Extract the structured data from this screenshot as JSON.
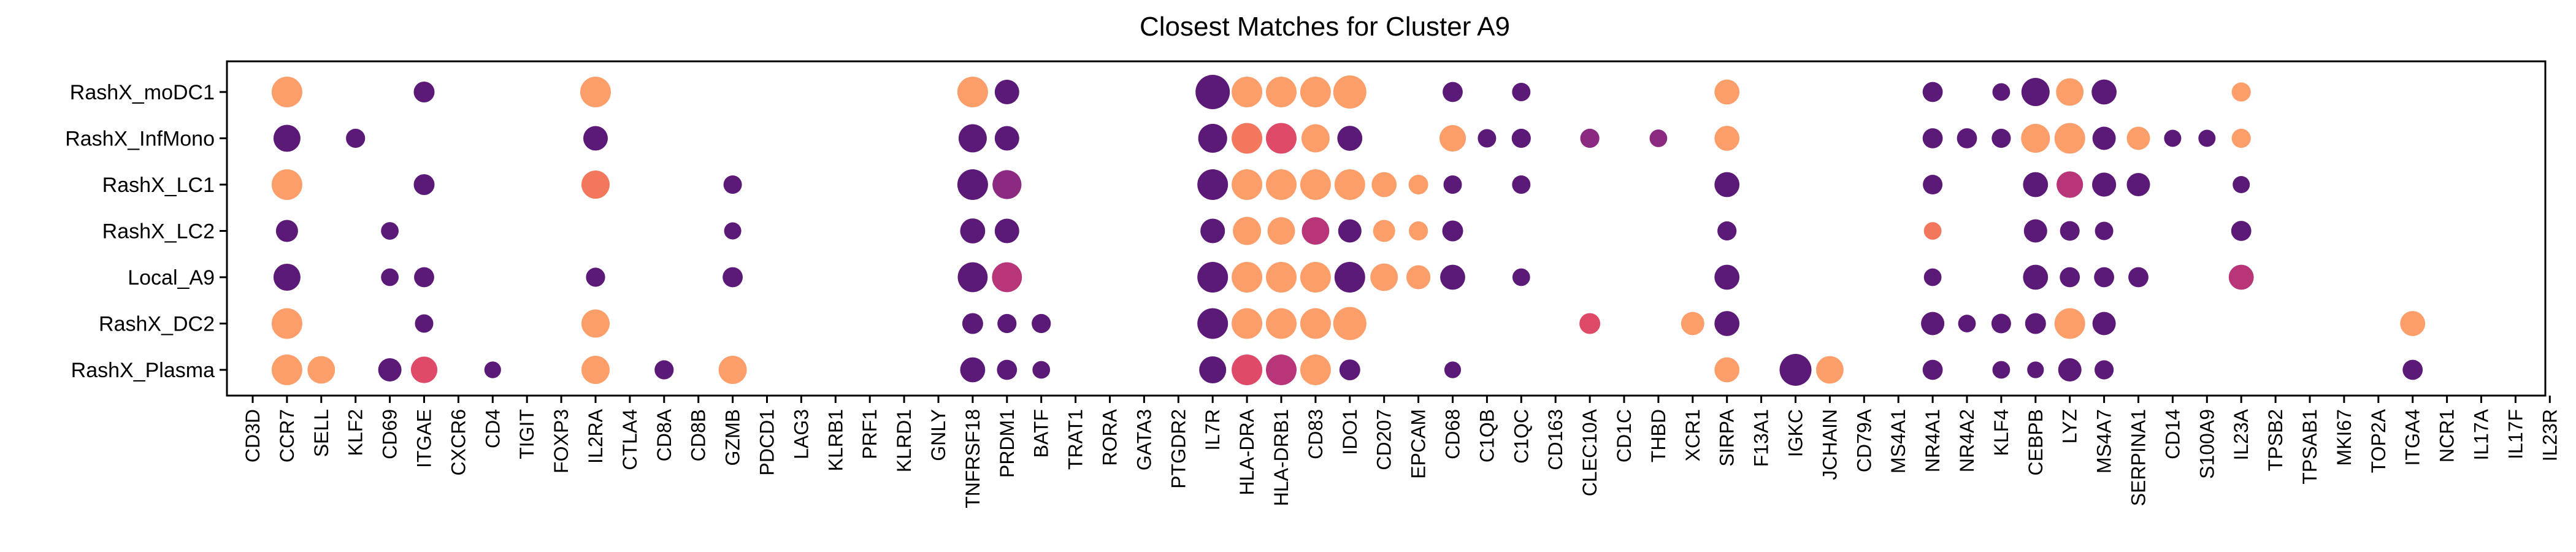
{
  "chart_data": {
    "type": "scatter",
    "title": "Closest Matches for Cluster A9",
    "xlabel": "",
    "ylabel": "",
    "grid": false,
    "legend": "none",
    "categories": [
      "CD3D",
      "CCR7",
      "SELL",
      "KLF2",
      "CD69",
      "ITGAE",
      "CXCR6",
      "CD4",
      "TIGIT",
      "FOXP3",
      "IL2RA",
      "CTLA4",
      "CD8A",
      "CD8B",
      "GZMB",
      "PDCD1",
      "LAG3",
      "KLRB1",
      "PRF1",
      "KLRD1",
      "GNLY",
      "TNFRSF18",
      "PRDM1",
      "BATF",
      "TRAT1",
      "RORA",
      "GATA3",
      "PTGDR2",
      "IL7R",
      "HLA-DRA",
      "HLA-DRB1",
      "CD83",
      "IDO1",
      "CD207",
      "EPCAM",
      "CD68",
      "C1QB",
      "C1QC",
      "CD163",
      "CLEC10A",
      "CD1C",
      "THBD",
      "XCR1",
      "SIRPA",
      "F13A1",
      "IGKC",
      "JCHAIN",
      "CD79A",
      "MS4A1",
      "NR4A1",
      "NR4A2",
      "KLF4",
      "CEBPB",
      "LYZ",
      "MS4A7",
      "SERPINA1",
      "CD14",
      "S100A9",
      "IL23A",
      "TPSB2",
      "TPSAB1",
      "MKI67",
      "TOP2A",
      "ITGA4",
      "NCR1",
      "IL17A",
      "IL17F",
      "IL23R"
    ],
    "rows": [
      "RashX_moDC1",
      "RashX_InfMono",
      "RashX_LC1",
      "RashX_LC2",
      "Local_A9",
      "RashX_DC2",
      "RashX_Plasma"
    ],
    "color_scale": [
      "#5c1a78",
      "#8c2a81",
      "#b8357a",
      "#de4a68",
      "#f3775c",
      "#fb9e6a"
    ],
    "points": [
      {
        "row": "RashX_moDC1",
        "gene": "CCR7",
        "size": 0.85,
        "color": 1.0
      },
      {
        "row": "RashX_moDC1",
        "gene": "ITGAE",
        "size": 0.45,
        "color": 0.0
      },
      {
        "row": "RashX_moDC1",
        "gene": "IL2RA",
        "size": 0.85,
        "color": 1.0
      },
      {
        "row": "RashX_moDC1",
        "gene": "TNFRSF18",
        "size": 0.85,
        "color": 1.0
      },
      {
        "row": "RashX_moDC1",
        "gene": "PRDM1",
        "size": 0.6,
        "color": 0.0
      },
      {
        "row": "RashX_moDC1",
        "gene": "IL7R",
        "size": 1.0,
        "color": 0.0
      },
      {
        "row": "RashX_moDC1",
        "gene": "HLA-DRA",
        "size": 0.85,
        "color": 1.0
      },
      {
        "row": "RashX_moDC1",
        "gene": "HLA-DRB1",
        "size": 0.85,
        "color": 1.0
      },
      {
        "row": "RashX_moDC1",
        "gene": "CD83",
        "size": 0.85,
        "color": 1.0
      },
      {
        "row": "RashX_moDC1",
        "gene": "IDO1",
        "size": 0.95,
        "color": 1.0
      },
      {
        "row": "RashX_moDC1",
        "gene": "CD68",
        "size": 0.42,
        "color": 0.0
      },
      {
        "row": "RashX_moDC1",
        "gene": "C1QC",
        "size": 0.35,
        "color": 0.0
      },
      {
        "row": "RashX_moDC1",
        "gene": "SIRPA",
        "size": 0.62,
        "color": 1.0
      },
      {
        "row": "RashX_moDC1",
        "gene": "NR4A1",
        "size": 0.42,
        "color": 0.0
      },
      {
        "row": "RashX_moDC1",
        "gene": "KLF4",
        "size": 0.32,
        "color": 0.0
      },
      {
        "row": "RashX_moDC1",
        "gene": "CEBPB",
        "size": 0.75,
        "color": 0.0
      },
      {
        "row": "RashX_moDC1",
        "gene": "LYZ",
        "size": 0.72,
        "color": 1.0
      },
      {
        "row": "RashX_moDC1",
        "gene": "MS4A7",
        "size": 0.62,
        "color": 0.0
      },
      {
        "row": "RashX_moDC1",
        "gene": "IL23A",
        "size": 0.38,
        "color": 1.0
      },
      {
        "row": "RashX_InfMono",
        "gene": "CCR7",
        "size": 0.7,
        "color": 0.0
      },
      {
        "row": "RashX_InfMono",
        "gene": "KLF2",
        "size": 0.38,
        "color": 0.0
      },
      {
        "row": "RashX_InfMono",
        "gene": "IL2RA",
        "size": 0.6,
        "color": 0.0
      },
      {
        "row": "RashX_InfMono",
        "gene": "TNFRSF18",
        "size": 0.75,
        "color": 0.0
      },
      {
        "row": "RashX_InfMono",
        "gene": "PRDM1",
        "size": 0.6,
        "color": 0.0
      },
      {
        "row": "RashX_InfMono",
        "gene": "IL7R",
        "size": 0.78,
        "color": 0.0
      },
      {
        "row": "RashX_InfMono",
        "gene": "HLA-DRA",
        "size": 0.85,
        "color": 0.8
      },
      {
        "row": "RashX_InfMono",
        "gene": "HLA-DRB1",
        "size": 0.85,
        "color": 0.6
      },
      {
        "row": "RashX_InfMono",
        "gene": "CD83",
        "size": 0.75,
        "color": 1.0
      },
      {
        "row": "RashX_InfMono",
        "gene": "IDO1",
        "size": 0.62,
        "color": 0.0
      },
      {
        "row": "RashX_InfMono",
        "gene": "CD68",
        "size": 0.68,
        "color": 1.0
      },
      {
        "row": "RashX_InfMono",
        "gene": "C1QB",
        "size": 0.35,
        "color": 0.0
      },
      {
        "row": "RashX_InfMono",
        "gene": "C1QC",
        "size": 0.38,
        "color": 0.0
      },
      {
        "row": "RashX_InfMono",
        "gene": "CLEC10A",
        "size": 0.38,
        "color": 0.2
      },
      {
        "row": "RashX_InfMono",
        "gene": "THBD",
        "size": 0.32,
        "color": 0.2
      },
      {
        "row": "RashX_InfMono",
        "gene": "SIRPA",
        "size": 0.62,
        "color": 1.0
      },
      {
        "row": "RashX_InfMono",
        "gene": "NR4A1",
        "size": 0.42,
        "color": 0.0
      },
      {
        "row": "RashX_InfMono",
        "gene": "NR4A2",
        "size": 0.42,
        "color": 0.0
      },
      {
        "row": "RashX_InfMono",
        "gene": "KLF4",
        "size": 0.38,
        "color": 0.0
      },
      {
        "row": "RashX_InfMono",
        "gene": "CEBPB",
        "size": 0.78,
        "color": 1.0
      },
      {
        "row": "RashX_InfMono",
        "gene": "LYZ",
        "size": 0.85,
        "color": 1.0
      },
      {
        "row": "RashX_InfMono",
        "gene": "MS4A7",
        "size": 0.55,
        "color": 0.0
      },
      {
        "row": "RashX_InfMono",
        "gene": "SERPINA1",
        "size": 0.55,
        "color": 1.0
      },
      {
        "row": "RashX_InfMono",
        "gene": "CD14",
        "size": 0.3,
        "color": 0.0
      },
      {
        "row": "RashX_InfMono",
        "gene": "S100A9",
        "size": 0.3,
        "color": 0.0
      },
      {
        "row": "RashX_InfMono",
        "gene": "IL23A",
        "size": 0.38,
        "color": 1.0
      },
      {
        "row": "RashX_LC1",
        "gene": "CCR7",
        "size": 0.85,
        "color": 1.0
      },
      {
        "row": "RashX_LC1",
        "gene": "ITGAE",
        "size": 0.45,
        "color": 0.0
      },
      {
        "row": "RashX_LC1",
        "gene": "IL2RA",
        "size": 0.75,
        "color": 0.8
      },
      {
        "row": "RashX_LC1",
        "gene": "GZMB",
        "size": 0.35,
        "color": 0.0
      },
      {
        "row": "RashX_LC1",
        "gene": "TNFRSF18",
        "size": 0.85,
        "color": 0.0
      },
      {
        "row": "RashX_LC1",
        "gene": "PRDM1",
        "size": 0.78,
        "color": 0.2
      },
      {
        "row": "RashX_LC1",
        "gene": "IL7R",
        "size": 0.85,
        "color": 0.0
      },
      {
        "row": "RashX_LC1",
        "gene": "HLA-DRA",
        "size": 0.85,
        "color": 1.0
      },
      {
        "row": "RashX_LC1",
        "gene": "HLA-DRB1",
        "size": 0.85,
        "color": 1.0
      },
      {
        "row": "RashX_LC1",
        "gene": "CD83",
        "size": 0.85,
        "color": 1.0
      },
      {
        "row": "RashX_LC1",
        "gene": "IDO1",
        "size": 0.85,
        "color": 1.0
      },
      {
        "row": "RashX_LC1",
        "gene": "CD207",
        "size": 0.62,
        "color": 1.0
      },
      {
        "row": "RashX_LC1",
        "gene": "EPCAM",
        "size": 0.4,
        "color": 1.0
      },
      {
        "row": "RashX_LC1",
        "gene": "CD68",
        "size": 0.35,
        "color": 0.0
      },
      {
        "row": "RashX_LC1",
        "gene": "C1QC",
        "size": 0.35,
        "color": 0.0
      },
      {
        "row": "RashX_LC1",
        "gene": "SIRPA",
        "size": 0.62,
        "color": 0.0
      },
      {
        "row": "RashX_LC1",
        "gene": "NR4A1",
        "size": 0.4,
        "color": 0.0
      },
      {
        "row": "RashX_LC1",
        "gene": "CEBPB",
        "size": 0.62,
        "color": 0.0
      },
      {
        "row": "RashX_LC1",
        "gene": "LYZ",
        "size": 0.68,
        "color": 0.4
      },
      {
        "row": "RashX_LC1",
        "gene": "MS4A7",
        "size": 0.58,
        "color": 0.0
      },
      {
        "row": "RashX_LC1",
        "gene": "SERPINA1",
        "size": 0.55,
        "color": 0.0
      },
      {
        "row": "RashX_LC1",
        "gene": "IL23A",
        "size": 0.3,
        "color": 0.0
      },
      {
        "row": "RashX_LC2",
        "gene": "CCR7",
        "size": 0.5,
        "color": 0.0
      },
      {
        "row": "RashX_LC2",
        "gene": "CD69",
        "size": 0.32,
        "color": 0.0
      },
      {
        "row": "RashX_LC2",
        "gene": "GZMB",
        "size": 0.3,
        "color": 0.0
      },
      {
        "row": "RashX_LC2",
        "gene": "TNFRSF18",
        "size": 0.62,
        "color": 0.0
      },
      {
        "row": "RashX_LC2",
        "gene": "PRDM1",
        "size": 0.6,
        "color": 0.0
      },
      {
        "row": "RashX_LC2",
        "gene": "IL7R",
        "size": 0.6,
        "color": 0.0
      },
      {
        "row": "RashX_LC2",
        "gene": "HLA-DRA",
        "size": 0.75,
        "color": 1.0
      },
      {
        "row": "RashX_LC2",
        "gene": "HLA-DRB1",
        "size": 0.72,
        "color": 1.0
      },
      {
        "row": "RashX_LC2",
        "gene": "CD83",
        "size": 0.72,
        "color": 0.4
      },
      {
        "row": "RashX_LC2",
        "gene": "IDO1",
        "size": 0.55,
        "color": 0.0
      },
      {
        "row": "RashX_LC2",
        "gene": "CD207",
        "size": 0.5,
        "color": 1.0
      },
      {
        "row": "RashX_LC2",
        "gene": "EPCAM",
        "size": 0.38,
        "color": 1.0
      },
      {
        "row": "RashX_LC2",
        "gene": "CD68",
        "size": 0.45,
        "color": 0.0
      },
      {
        "row": "RashX_LC2",
        "gene": "SIRPA",
        "size": 0.38,
        "color": 0.0
      },
      {
        "row": "RashX_LC2",
        "gene": "NR4A1",
        "size": 0.32,
        "color": 0.8
      },
      {
        "row": "RashX_LC2",
        "gene": "CEBPB",
        "size": 0.55,
        "color": 0.0
      },
      {
        "row": "RashX_LC2",
        "gene": "LYZ",
        "size": 0.4,
        "color": 0.0
      },
      {
        "row": "RashX_LC2",
        "gene": "MS4A7",
        "size": 0.35,
        "color": 0.0
      },
      {
        "row": "RashX_LC2",
        "gene": "IL23A",
        "size": 0.42,
        "color": 0.0
      },
      {
        "row": "Local_A9",
        "gene": "CCR7",
        "size": 0.7,
        "color": 0.0
      },
      {
        "row": "Local_A9",
        "gene": "CD69",
        "size": 0.32,
        "color": 0.0
      },
      {
        "row": "Local_A9",
        "gene": "ITGAE",
        "size": 0.42,
        "color": 0.0
      },
      {
        "row": "Local_A9",
        "gene": "IL2RA",
        "size": 0.38,
        "color": 0.0
      },
      {
        "row": "Local_A9",
        "gene": "GZMB",
        "size": 0.42,
        "color": 0.0
      },
      {
        "row": "Local_A9",
        "gene": "TNFRSF18",
        "size": 0.82,
        "color": 0.0
      },
      {
        "row": "Local_A9",
        "gene": "PRDM1",
        "size": 0.82,
        "color": 0.4
      },
      {
        "row": "Local_A9",
        "gene": "IL7R",
        "size": 0.85,
        "color": 0.0
      },
      {
        "row": "Local_A9",
        "gene": "HLA-DRA",
        "size": 0.85,
        "color": 1.0
      },
      {
        "row": "Local_A9",
        "gene": "HLA-DRB1",
        "size": 0.85,
        "color": 1.0
      },
      {
        "row": "Local_A9",
        "gene": "CD83",
        "size": 0.85,
        "color": 1.0
      },
      {
        "row": "Local_A9",
        "gene": "IDO1",
        "size": 0.85,
        "color": 0.0
      },
      {
        "row": "Local_A9",
        "gene": "CD207",
        "size": 0.72,
        "color": 1.0
      },
      {
        "row": "Local_A9",
        "gene": "EPCAM",
        "size": 0.58,
        "color": 1.0
      },
      {
        "row": "Local_A9",
        "gene": "CD68",
        "size": 0.62,
        "color": 0.0
      },
      {
        "row": "Local_A9",
        "gene": "C1QC",
        "size": 0.32,
        "color": 0.0
      },
      {
        "row": "Local_A9",
        "gene": "SIRPA",
        "size": 0.62,
        "color": 0.0
      },
      {
        "row": "Local_A9",
        "gene": "NR4A1",
        "size": 0.32,
        "color": 0.0
      },
      {
        "row": "Local_A9",
        "gene": "CEBPB",
        "size": 0.62,
        "color": 0.0
      },
      {
        "row": "Local_A9",
        "gene": "LYZ",
        "size": 0.42,
        "color": 0.0
      },
      {
        "row": "Local_A9",
        "gene": "MS4A7",
        "size": 0.42,
        "color": 0.0
      },
      {
        "row": "Local_A9",
        "gene": "SERPINA1",
        "size": 0.42,
        "color": 0.0
      },
      {
        "row": "Local_A9",
        "gene": "IL23A",
        "size": 0.62,
        "color": 0.4
      },
      {
        "row": "RashX_DC2",
        "gene": "CCR7",
        "size": 0.85,
        "color": 1.0
      },
      {
        "row": "RashX_DC2",
        "gene": "ITGAE",
        "size": 0.35,
        "color": 0.0
      },
      {
        "row": "RashX_DC2",
        "gene": "IL2RA",
        "size": 0.75,
        "color": 1.0
      },
      {
        "row": "RashX_DC2",
        "gene": "TNFRSF18",
        "size": 0.45,
        "color": 0.0
      },
      {
        "row": "RashX_DC2",
        "gene": "PRDM1",
        "size": 0.38,
        "color": 0.0
      },
      {
        "row": "RashX_DC2",
        "gene": "BATF",
        "size": 0.38,
        "color": 0.0
      },
      {
        "row": "RashX_DC2",
        "gene": "IL7R",
        "size": 0.85,
        "color": 0.0
      },
      {
        "row": "RashX_DC2",
        "gene": "HLA-DRA",
        "size": 0.85,
        "color": 1.0
      },
      {
        "row": "RashX_DC2",
        "gene": "HLA-DRB1",
        "size": 0.85,
        "color": 1.0
      },
      {
        "row": "RashX_DC2",
        "gene": "CD83",
        "size": 0.85,
        "color": 1.0
      },
      {
        "row": "RashX_DC2",
        "gene": "IDO1",
        "size": 0.95,
        "color": 1.0
      },
      {
        "row": "RashX_DC2",
        "gene": "CLEC10A",
        "size": 0.45,
        "color": 0.6
      },
      {
        "row": "RashX_DC2",
        "gene": "XCR1",
        "size": 0.55,
        "color": 1.0
      },
      {
        "row": "RashX_DC2",
        "gene": "SIRPA",
        "size": 0.62,
        "color": 0.0
      },
      {
        "row": "RashX_DC2",
        "gene": "NR4A1",
        "size": 0.55,
        "color": 0.0
      },
      {
        "row": "RashX_DC2",
        "gene": "NR4A2",
        "size": 0.32,
        "color": 0.0
      },
      {
        "row": "RashX_DC2",
        "gene": "KLF4",
        "size": 0.4,
        "color": 0.0
      },
      {
        "row": "RashX_DC2",
        "gene": "CEBPB",
        "size": 0.45,
        "color": 0.0
      },
      {
        "row": "RashX_DC2",
        "gene": "LYZ",
        "size": 0.85,
        "color": 1.0
      },
      {
        "row": "RashX_DC2",
        "gene": "MS4A7",
        "size": 0.55,
        "color": 0.0
      },
      {
        "row": "RashX_DC2",
        "gene": "ITGA4",
        "size": 0.62,
        "color": 1.0
      },
      {
        "row": "RashX_Plasma",
        "gene": "CCR7",
        "size": 0.85,
        "color": 1.0
      },
      {
        "row": "RashX_Plasma",
        "gene": "SELL",
        "size": 0.72,
        "color": 1.0
      },
      {
        "row": "RashX_Plasma",
        "gene": "CD69",
        "size": 0.55,
        "color": 0.0
      },
      {
        "row": "RashX_Plasma",
        "gene": "ITGAE",
        "size": 0.68,
        "color": 0.6
      },
      {
        "row": "RashX_Plasma",
        "gene": "CD4",
        "size": 0.28,
        "color": 0.0
      },
      {
        "row": "RashX_Plasma",
        "gene": "IL2RA",
        "size": 0.75,
        "color": 1.0
      },
      {
        "row": "RashX_Plasma",
        "gene": "CD8A",
        "size": 0.38,
        "color": 0.0
      },
      {
        "row": "RashX_Plasma",
        "gene": "GZMB",
        "size": 0.75,
        "color": 1.0
      },
      {
        "row": "RashX_Plasma",
        "gene": "TNFRSF18",
        "size": 0.62,
        "color": 0.0
      },
      {
        "row": "RashX_Plasma",
        "gene": "PRDM1",
        "size": 0.42,
        "color": 0.0
      },
      {
        "row": "RashX_Plasma",
        "gene": "BATF",
        "size": 0.32,
        "color": 0.0
      },
      {
        "row": "RashX_Plasma",
        "gene": "IL7R",
        "size": 0.7,
        "color": 0.0
      },
      {
        "row": "RashX_Plasma",
        "gene": "HLA-DRA",
        "size": 0.85,
        "color": 0.6
      },
      {
        "row": "RashX_Plasma",
        "gene": "HLA-DRB1",
        "size": 0.85,
        "color": 0.4
      },
      {
        "row": "RashX_Plasma",
        "gene": "CD83",
        "size": 0.85,
        "color": 1.0
      },
      {
        "row": "RashX_Plasma",
        "gene": "IDO1",
        "size": 0.45,
        "color": 0.0
      },
      {
        "row": "RashX_Plasma",
        "gene": "CD68",
        "size": 0.28,
        "color": 0.0
      },
      {
        "row": "RashX_Plasma",
        "gene": "SIRPA",
        "size": 0.62,
        "color": 1.0
      },
      {
        "row": "RashX_Plasma",
        "gene": "IGKC",
        "size": 0.9,
        "color": 0.0
      },
      {
        "row": "RashX_Plasma",
        "gene": "JCHAIN",
        "size": 0.72,
        "color": 1.0
      },
      {
        "row": "RashX_Plasma",
        "gene": "NR4A1",
        "size": 0.42,
        "color": 0.0
      },
      {
        "row": "RashX_Plasma",
        "gene": "KLF4",
        "size": 0.32,
        "color": 0.0
      },
      {
        "row": "RashX_Plasma",
        "gene": "CEBPB",
        "size": 0.28,
        "color": 0.0
      },
      {
        "row": "RashX_Plasma",
        "gene": "LYZ",
        "size": 0.55,
        "color": 0.0
      },
      {
        "row": "RashX_Plasma",
        "gene": "MS4A7",
        "size": 0.38,
        "color": 0.0
      },
      {
        "row": "RashX_Plasma",
        "gene": "ITGA4",
        "size": 0.42,
        "color": 0.0
      }
    ]
  }
}
